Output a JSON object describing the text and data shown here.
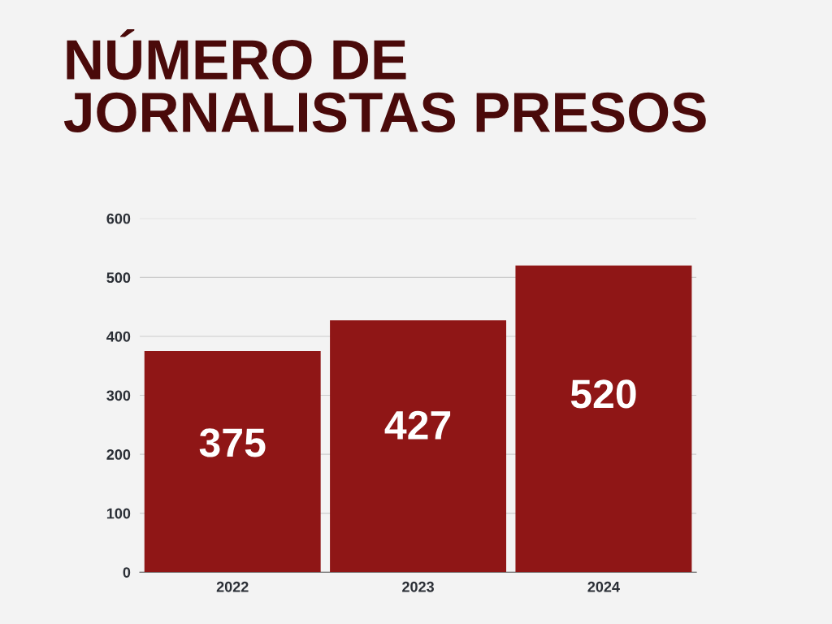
{
  "chart_data": {
    "type": "bar",
    "title": "NÚMERO DE\nJORNALISTAS PRESOS",
    "categories": [
      "2022",
      "2023",
      "2024"
    ],
    "values": [
      375,
      427,
      520
    ],
    "color": "#8f1616",
    "ylim": [
      0,
      600
    ],
    "yticks": [
      0,
      100,
      200,
      300,
      400,
      500,
      600
    ],
    "grid": "y",
    "data_labels": true
  }
}
